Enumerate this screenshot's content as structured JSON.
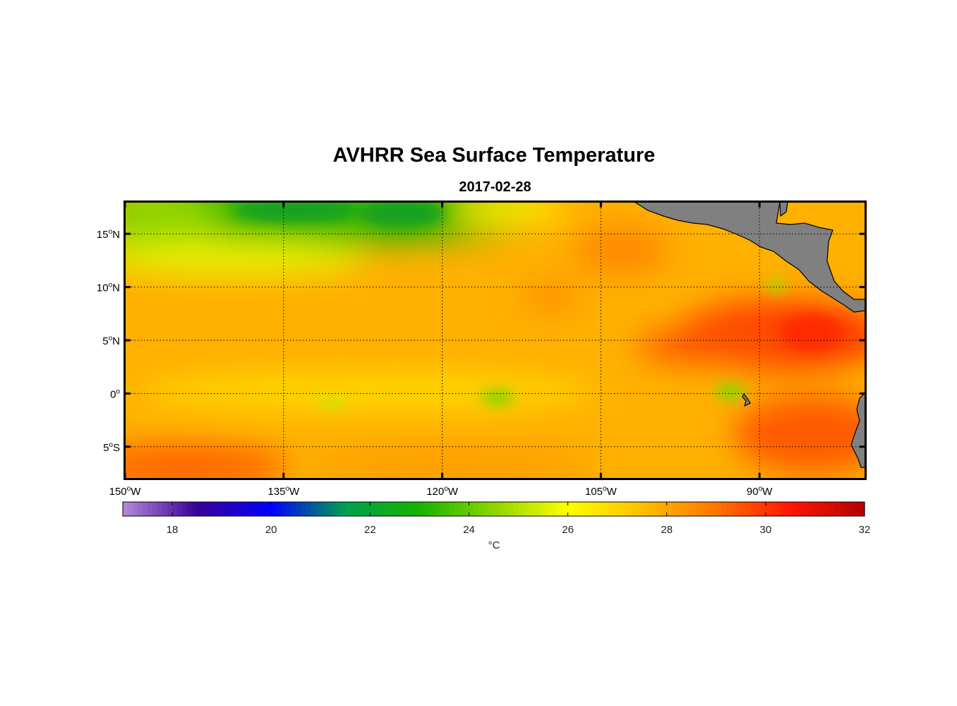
{
  "title": "AVHRR Sea Surface Temperature",
  "subtitle": "2017-02-28",
  "map": {
    "lon_range": [
      -150,
      -80
    ],
    "lat_range": [
      -8,
      18
    ],
    "lon_ticks": [
      {
        "value": -150,
        "deg": "150",
        "hemi": "W"
      },
      {
        "value": -135,
        "deg": "135",
        "hemi": "W"
      },
      {
        "value": -120,
        "deg": "120",
        "hemi": "W"
      },
      {
        "value": -105,
        "deg": "105",
        "hemi": "W"
      },
      {
        "value": -90,
        "deg": "90",
        "hemi": "W"
      }
    ],
    "lat_ticks": [
      {
        "value": 15,
        "deg": "15",
        "hemi": "N"
      },
      {
        "value": 10,
        "deg": "10",
        "hemi": "N"
      },
      {
        "value": 5,
        "deg": "5",
        "hemi": "N"
      },
      {
        "value": 0,
        "deg": "0",
        "hemi": ""
      },
      {
        "value": -5,
        "deg": "5",
        "hemi": "S"
      }
    ],
    "gridlines": true,
    "land_color": "#808080",
    "frame_color": "#000000"
  },
  "colorbar": {
    "range": [
      17,
      32
    ],
    "ticks": [
      18,
      20,
      22,
      24,
      26,
      28,
      30,
      32
    ],
    "units": "°C",
    "stops": [
      "#b48ad6",
      "#3a0099",
      "#0000ff",
      "#00a050",
      "#14b400",
      "#8fd400",
      "#ffff00",
      "#ffc000",
      "#ff7400",
      "#ff1600",
      "#b40000"
    ]
  }
}
